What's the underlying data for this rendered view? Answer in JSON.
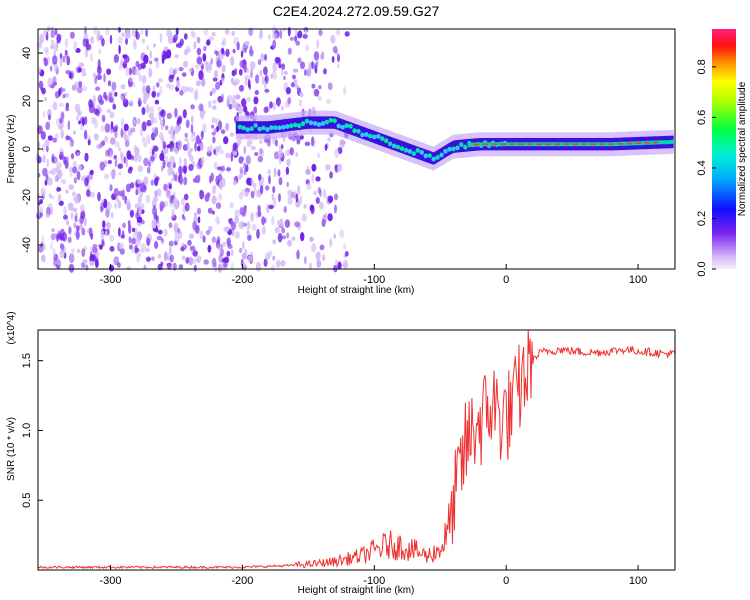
{
  "title": "C2E4.2024.272.09.59.G27",
  "colors": {
    "snr_line": "#ee3333",
    "spectrogram_low": "#d8c4f6",
    "spectrogram_mid": "#6a14e8",
    "spectrogram_high": "#00e6a8"
  },
  "chart_data": [
    {
      "type": "heatmap",
      "xlabel": "Height of straight line (km)",
      "ylabel": "Frequency (Hz)",
      "xlim": [
        -355,
        128
      ],
      "ylim": [
        -50,
        50
      ],
      "xticks": [
        -300,
        -200,
        -100,
        0,
        100
      ],
      "yticks": [
        -40,
        -20,
        0,
        20,
        40
      ],
      "colorbar": {
        "label": "Normalized spectral amplitude",
        "range": [
          0,
          0.95
        ],
        "ticks": [
          "0.0",
          "0.2",
          "0.4",
          "0.6",
          "0.8"
        ],
        "colormap": "rainbow (violet to red)"
      },
      "ridge": {
        "description_points_x": [
          -205,
          -180,
          -150,
          -130,
          -110,
          -90,
          -70,
          -55,
          -40,
          -20,
          0,
          40,
          80,
          128
        ],
        "description_points_y": [
          9,
          9,
          11,
          11,
          7,
          3,
          -1,
          -4,
          1,
          2,
          2,
          2,
          2,
          3
        ]
      },
      "noise_region_x": [
        -355,
        -120
      ]
    },
    {
      "type": "line",
      "xlabel": "Height of straight line (km)",
      "ylabel": "SNR (10 * v/v)",
      "yscale_note": "(x10^4)",
      "xlim": [
        -355,
        128
      ],
      "ylim": [
        0,
        1.72
      ],
      "xticks": [
        -300,
        -200,
        -100,
        0,
        100
      ],
      "yticks": [
        0.5,
        1.0,
        1.5
      ],
      "yticklabels": [
        "0.5",
        "1.0",
        "1.5"
      ],
      "series": [
        {
          "x": [
            -355,
            -300,
            -250,
            -200,
            -170,
            -150,
            -130,
            -110,
            -100,
            -90,
            -80,
            -70,
            -60,
            -50,
            -45,
            -40,
            -35,
            -30,
            -25,
            -22,
            -20,
            -15,
            -10,
            -5,
            0,
            5,
            10,
            15,
            20,
            25,
            30,
            35,
            40,
            50,
            60,
            70,
            80,
            90,
            100,
            110,
            120,
            128
          ],
          "y": [
            0.02,
            0.02,
            0.02,
            0.02,
            0.03,
            0.04,
            0.06,
            0.1,
            0.14,
            0.18,
            0.17,
            0.14,
            0.1,
            0.15,
            0.25,
            0.45,
            0.7,
            0.9,
            1.0,
            1.08,
            1.05,
            1.12,
            1.2,
            1.1,
            1.1,
            1.15,
            1.3,
            1.42,
            1.5,
            1.55,
            1.57,
            1.57,
            1.58,
            1.57,
            1.56,
            1.56,
            1.57,
            1.58,
            1.57,
            1.56,
            1.55,
            1.55
          ]
        }
      ]
    }
  ]
}
